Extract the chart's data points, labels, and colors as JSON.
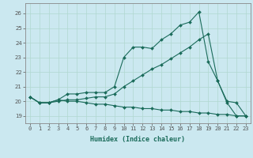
{
  "title": "",
  "xlabel": "Humidex (Indice chaleur)",
  "ylabel": "",
  "background_color": "#cbe8f0",
  "grid_color": "#b0d8d0",
  "line_color": "#1a6b5a",
  "xlim": [
    -0.5,
    23.5
  ],
  "ylim": [
    18.5,
    26.7
  ],
  "xticks": [
    0,
    1,
    2,
    3,
    4,
    5,
    6,
    7,
    8,
    9,
    10,
    11,
    12,
    13,
    14,
    15,
    16,
    17,
    18,
    19,
    20,
    21,
    22,
    23
  ],
  "yticks": [
    19,
    20,
    21,
    22,
    23,
    24,
    25,
    26
  ],
  "series1_x": [
    0,
    1,
    2,
    3,
    4,
    5,
    6,
    7,
    8,
    9,
    10,
    11,
    12,
    13,
    14,
    15,
    16,
    17,
    18,
    19,
    20,
    21,
    22,
    23
  ],
  "series1_y": [
    20.3,
    19.9,
    19.9,
    20.1,
    20.5,
    20.5,
    20.6,
    20.6,
    20.6,
    21.0,
    23.0,
    23.7,
    23.7,
    23.6,
    24.2,
    24.6,
    25.2,
    25.4,
    26.1,
    22.7,
    21.4,
    19.9,
    19.0,
    19.0
  ],
  "series2_x": [
    0,
    1,
    2,
    3,
    4,
    5,
    6,
    7,
    8,
    9,
    10,
    11,
    12,
    13,
    14,
    15,
    16,
    17,
    18,
    19,
    20,
    21,
    22,
    23
  ],
  "series2_y": [
    20.3,
    19.9,
    19.9,
    20.0,
    20.1,
    20.1,
    20.2,
    20.3,
    20.3,
    20.5,
    21.0,
    21.4,
    21.8,
    22.2,
    22.5,
    22.9,
    23.3,
    23.7,
    24.2,
    24.6,
    21.4,
    20.0,
    19.9,
    19.0
  ],
  "series3_x": [
    0,
    1,
    2,
    3,
    4,
    5,
    6,
    7,
    8,
    9,
    10,
    11,
    12,
    13,
    14,
    15,
    16,
    17,
    18,
    19,
    20,
    21,
    22,
    23
  ],
  "series3_y": [
    20.3,
    19.9,
    19.9,
    20.1,
    20.0,
    20.0,
    19.9,
    19.8,
    19.8,
    19.7,
    19.6,
    19.6,
    19.5,
    19.5,
    19.4,
    19.4,
    19.3,
    19.3,
    19.2,
    19.2,
    19.1,
    19.1,
    19.0,
    19.0
  ],
  "tick_fontsize": 5,
  "xlabel_fontsize": 6,
  "marker_size": 2,
  "linewidth": 0.8
}
